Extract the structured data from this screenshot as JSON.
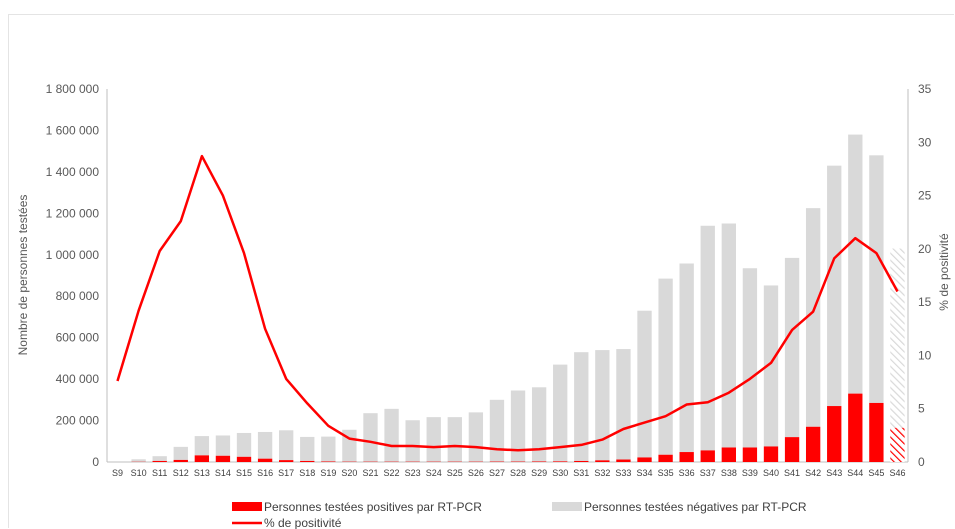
{
  "chart_data": {
    "type": "bar",
    "categories": [
      "S9",
      "S10",
      "S11",
      "S12",
      "S13",
      "S14",
      "S15",
      "S16",
      "S17",
      "S18",
      "S19",
      "S20",
      "S21",
      "S22",
      "S23",
      "S24",
      "S25",
      "S26",
      "S27",
      "S28",
      "S29",
      "S30",
      "S31",
      "S32",
      "S33",
      "S34",
      "S35",
      "S36",
      "S37",
      "S38",
      "S39",
      "S40",
      "S41",
      "S42",
      "S43",
      "S44",
      "S45",
      "S46"
    ],
    "series": [
      {
        "name": "Personnes testées positives par RT-PCR",
        "kind": "stacked-bar",
        "color": "#ff0000",
        "values": [
          0,
          1000,
          5000,
          10000,
          32000,
          30000,
          25000,
          16000,
          9000,
          5000,
          2500,
          1500,
          1500,
          1500,
          1500,
          1500,
          1500,
          1500,
          2000,
          2000,
          2500,
          3000,
          5000,
          8000,
          12000,
          22000,
          35000,
          48000,
          56000,
          70000,
          70000,
          75000,
          120000,
          170000,
          270000,
          330000,
          285000,
          165000
        ]
      },
      {
        "name": "Personnes testées négatives par RT-PCR",
        "kind": "stacked-bar",
        "color": "#d9d9d9",
        "values": [
          0,
          12000,
          23000,
          63000,
          93000,
          98000,
          115000,
          129000,
          144000,
          116000,
          120000,
          154000,
          234000,
          255000,
          200000,
          215000,
          215000,
          238000,
          298000,
          343000,
          358000,
          467000,
          525000,
          532000,
          533000,
          708000,
          850000,
          910000,
          1084000,
          1081000,
          865000,
          777000,
          865000,
          1055000,
          1160000,
          1250000,
          1195000,
          865000
        ]
      },
      {
        "name": "% de positivité",
        "kind": "line",
        "axis": "right",
        "color": "#ff0000",
        "values": [
          7.6,
          14.2,
          19.8,
          22.6,
          28.7,
          25.0,
          19.6,
          12.5,
          7.8,
          5.5,
          3.4,
          2.2,
          1.9,
          1.5,
          1.5,
          1.4,
          1.5,
          1.4,
          1.2,
          1.1,
          1.2,
          1.4,
          1.6,
          2.1,
          3.1,
          3.7,
          4.3,
          5.4,
          5.6,
          6.5,
          7.8,
          9.3,
          12.4,
          14.1,
          19.1,
          21.0,
          19.6,
          16.0
        ]
      }
    ],
    "partial_last_week": true,
    "ylabel": "Nombre de personnes testées",
    "y2label": "% de positivité",
    "ylim": [
      0,
      1800000
    ],
    "y2lim": [
      0,
      35
    ],
    "yticks": [
      "0",
      "200 000",
      "400 000",
      "600 000",
      "800 000",
      "1 000 000",
      "1 200 000",
      "1 400 000",
      "1 600 000",
      "1 800 000"
    ],
    "y2ticks": [
      "0",
      "5",
      "10",
      "15",
      "20",
      "25",
      "30",
      "35"
    ],
    "grid": false,
    "legend_position": "bottom"
  }
}
